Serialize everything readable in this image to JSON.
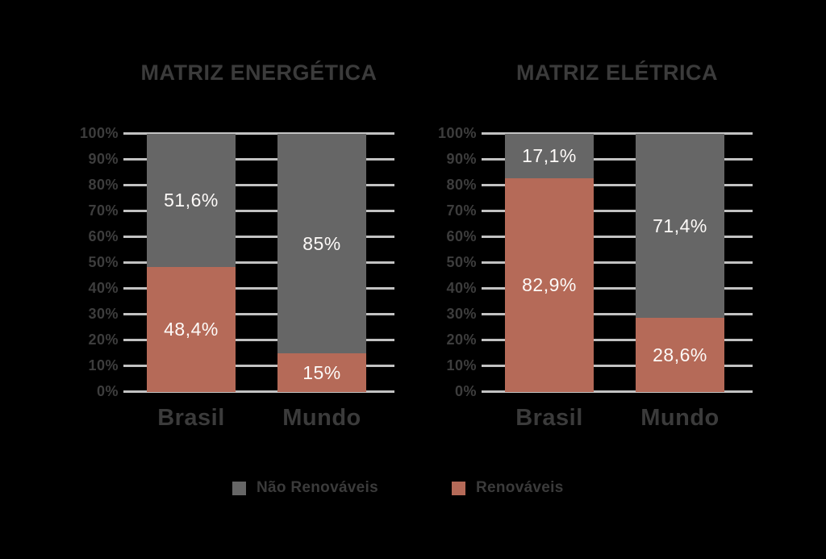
{
  "background_color": "#000000",
  "colors": {
    "non_renewable": "#666666",
    "renewable": "#b56a58",
    "title_text": "#3b3b3b",
    "axis_text": "#3d3d3d",
    "gridline": "#c2c2c2",
    "bar_label_text": "#fdfaf8"
  },
  "legend": {
    "position": "bottom",
    "items": [
      {
        "label": "Não Renováveis",
        "color_key": "non_renewable"
      },
      {
        "label": "Renováveis",
        "color_key": "renewable"
      }
    ]
  },
  "chart_data": [
    {
      "type": "bar",
      "stacked": true,
      "title": "MATRIZ ENERGÉTICA",
      "categories": [
        "Brasil",
        "Mundo"
      ],
      "series": [
        {
          "name": "Renováveis",
          "color": "#b56a58",
          "values": [
            48.4,
            15
          ],
          "labels": [
            "48,4%",
            "15%"
          ]
        },
        {
          "name": "Não Renováveis",
          "color": "#666666",
          "values": [
            51.6,
            85
          ],
          "labels": [
            "51,6%",
            "85%"
          ]
        }
      ],
      "xlabel": "",
      "ylabel": "",
      "ylim": [
        0,
        100
      ],
      "yticks": [
        "0%",
        "10%",
        "20%",
        "30%",
        "40%",
        "50%",
        "60%",
        "70%",
        "80%",
        "90%",
        "100%"
      ],
      "grid": true
    },
    {
      "type": "bar",
      "stacked": true,
      "title": "MATRIZ ELÉTRICA",
      "categories": [
        "Brasil",
        "Mundo"
      ],
      "series": [
        {
          "name": "Renováveis",
          "color": "#b56a58",
          "values": [
            82.9,
            28.6
          ],
          "labels": [
            "82,9%",
            "28,6%"
          ]
        },
        {
          "name": "Não Renováveis",
          "color": "#666666",
          "values": [
            17.1,
            71.4
          ],
          "labels": [
            "17,1%",
            "71,4%"
          ]
        }
      ],
      "xlabel": "",
      "ylabel": "",
      "ylim": [
        0,
        100
      ],
      "yticks": [
        "0%",
        "10%",
        "20%",
        "30%",
        "40%",
        "50%",
        "60%",
        "70%",
        "80%",
        "90%",
        "100%"
      ],
      "grid": true
    }
  ]
}
